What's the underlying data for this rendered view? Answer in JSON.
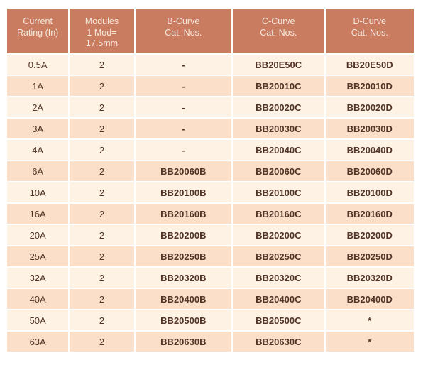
{
  "colors": {
    "header_bg": "#c97c5f",
    "header_text": "#f6e8e0",
    "row_light_bg": "#fdf2e3",
    "row_dark_bg": "#fbdfc8",
    "body_text": "#533528",
    "divider": "#ffffff"
  },
  "table": {
    "columns": [
      {
        "id": "current-rating",
        "lines": [
          "Current",
          "Rating (In)"
        ]
      },
      {
        "id": "modules",
        "lines": [
          "Modules",
          "1 Mod=",
          "17.5mm"
        ]
      },
      {
        "id": "b-curve",
        "lines": [
          "B-Curve",
          "Cat. Nos."
        ]
      },
      {
        "id": "c-curve",
        "lines": [
          "C-Curve",
          "Cat. Nos."
        ]
      },
      {
        "id": "d-curve",
        "lines": [
          "D-Curve",
          "Cat. Nos."
        ]
      }
    ],
    "rows": [
      [
        "0.5A",
        "2",
        "-",
        "BB20E50C",
        "BB20E50D"
      ],
      [
        "1A",
        "2",
        "-",
        "BB20010C",
        "BB20010D"
      ],
      [
        "2A",
        "2",
        "-",
        "BB20020C",
        "BB20020D"
      ],
      [
        "3A",
        "2",
        "-",
        "BB20030C",
        "BB20030D"
      ],
      [
        "4A",
        "2",
        "-",
        "BB20040C",
        "BB20040D"
      ],
      [
        "6A",
        "2",
        "BB20060B",
        "BB20060C",
        "BB20060D"
      ],
      [
        "10A",
        "2",
        "BB20100B",
        "BB20100C",
        "BB20100D"
      ],
      [
        "16A",
        "2",
        "BB20160B",
        "BB20160C",
        "BB20160D"
      ],
      [
        "20A",
        "2",
        "BB20200B",
        "BB20200C",
        "BB20200D"
      ],
      [
        "25A",
        "2",
        "BB20250B",
        "BB20250C",
        "BB20250D"
      ],
      [
        "32A",
        "2",
        "BB20320B",
        "BB20320C",
        "BB20320D"
      ],
      [
        "40A",
        "2",
        "BB20400B",
        "BB20400C",
        "BB20400D"
      ],
      [
        "50A",
        "2",
        "BB20500B",
        "BB20500C",
        "*"
      ],
      [
        "63A",
        "2",
        "BB20630B",
        "BB20630C",
        "*"
      ]
    ]
  }
}
